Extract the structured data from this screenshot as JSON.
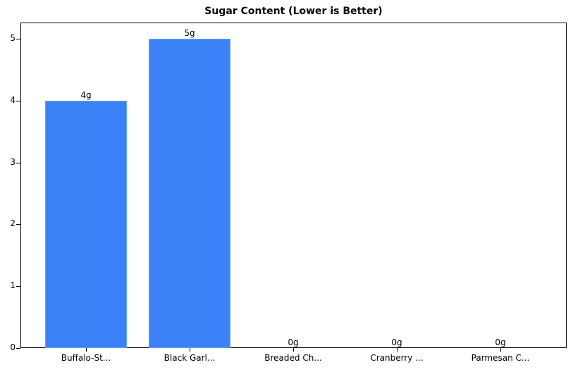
{
  "chart_data": {
    "type": "bar",
    "title": "Sugar Content (Lower is Better)",
    "xlabel": "",
    "ylabel": "",
    "categories": [
      "Buffalo-St...",
      "Black Garl...",
      "Breaded Ch...",
      "Cranberry ...",
      "Parmesan C..."
    ],
    "values": [
      4,
      5,
      0,
      0,
      0
    ],
    "value_labels": [
      "4g",
      "5g",
      "0g",
      "0g",
      "0g"
    ],
    "yticks": [
      "0",
      "1",
      "2",
      "3",
      "4",
      "5"
    ],
    "ylim": [
      0,
      5.25
    ],
    "grid": false,
    "legend": null,
    "bar_color": "#3b82f6",
    "bar_edge_color": "#60a5fa"
  }
}
